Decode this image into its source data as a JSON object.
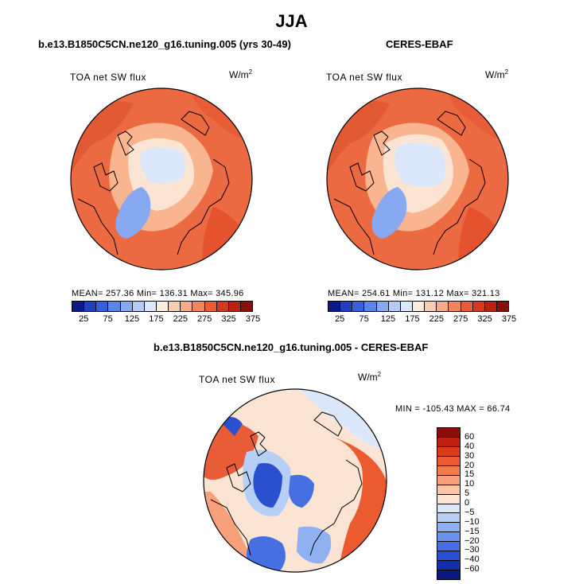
{
  "figure": {
    "title": "JJA"
  },
  "panels": [
    {
      "title": "b.e13.B1850C5CN.ne120_g16.tuning.005 (yrs 30-49)",
      "variable": "TOA net SW flux",
      "units_base": "W/m",
      "units_exp": "2",
      "stats": "MEAN= 257.36  Min= 136.31  Max= 345.96"
    },
    {
      "title": "CERES-EBAF",
      "variable": "TOA net SW flux",
      "units_base": "W/m",
      "units_exp": "2",
      "stats": "MEAN= 254.61  Min= 131.12  Max= 321.13"
    },
    {
      "title": "b.e13.B1850C5CN.ne120_g16.tuning.005 - CERES-EBAF",
      "variable": "TOA net SW flux",
      "units_base": "W/m",
      "units_exp": "2",
      "stats": "MIN = -105.43 MAX =  66.74"
    }
  ],
  "colorbar_main": {
    "colors": [
      "#0a1a8c",
      "#1f3fc4",
      "#3560e0",
      "#5a86ec",
      "#86a9f2",
      "#b3ccf7",
      "#dbe8fb",
      "#fbece0",
      "#f9cdb0",
      "#f7ab86",
      "#f2875e",
      "#e85c36",
      "#d33a1e",
      "#b8220f",
      "#8a0f0a"
    ],
    "ticks": [
      "25",
      "75",
      "125",
      "175",
      "225",
      "275",
      "325",
      "375"
    ]
  },
  "colorbar_diff": {
    "colors": [
      "#8a0f0a",
      "#c0210f",
      "#dd3a1c",
      "#ec5a30",
      "#f47b4c",
      "#f7a07a",
      "#f9c4a8",
      "#fbe4d4",
      "#dbe8fb",
      "#b6cff7",
      "#8fb1f2",
      "#6b92ec",
      "#4670e2",
      "#2a50d0",
      "#1430a8",
      "#0a1a80"
    ],
    "ticks": [
      "60",
      "40",
      "30",
      "20",
      "15",
      "10",
      "5",
      "0",
      "−5",
      "−10",
      "−15",
      "−20",
      "−30",
      "−40",
      "−60"
    ]
  }
}
